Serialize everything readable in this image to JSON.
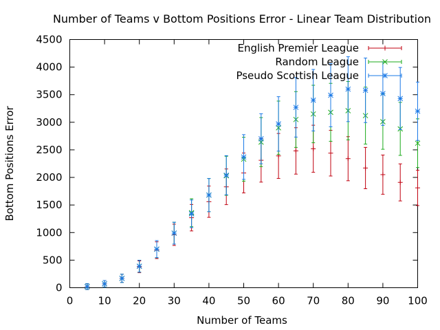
{
  "chart_data": {
    "type": "scatter",
    "title": "Number of Teams v Bottom Positions Error - Linear Team Distribution",
    "xlabel": "Number of Teams",
    "ylabel": "Bottom Positions Error",
    "xlim": [
      0,
      100
    ],
    "ylim": [
      0,
      4500
    ],
    "xticks": [
      0,
      10,
      20,
      30,
      40,
      50,
      60,
      70,
      80,
      90,
      100
    ],
    "yticks": [
      0,
      500,
      1000,
      1500,
      2000,
      2500,
      3000,
      3500,
      4000,
      4500
    ],
    "grid": false,
    "error_bars": true,
    "legend_position": "top-right",
    "x": [
      5,
      10,
      15,
      20,
      25,
      30,
      35,
      40,
      45,
      50,
      55,
      60,
      65,
      70,
      75,
      80,
      85,
      90,
      95,
      100
    ],
    "series": [
      {
        "name": "English Premier League",
        "color": "#c0000f",
        "marker": "plus",
        "values": [
          20,
          70,
          170,
          380,
          680,
          960,
          1270,
          1560,
          1830,
          2080,
          2310,
          2390,
          2480,
          2520,
          2440,
          2340,
          2170,
          2050,
          1910,
          1810
        ]
      },
      {
        "name": "Random League",
        "color": "#1aaa1a",
        "marker": "cross",
        "values": [
          20,
          70,
          170,
          390,
          700,
          990,
          1360,
          1680,
          2030,
          2330,
          2640,
          2900,
          3050,
          3150,
          3180,
          3210,
          3120,
          3010,
          2880,
          2620
        ]
      },
      {
        "name": "Pseudo Scottish League",
        "color": "#1a78e6",
        "marker": "star",
        "values": [
          20,
          70,
          170,
          390,
          700,
          990,
          1340,
          1680,
          2040,
          2370,
          2700,
          2970,
          3270,
          3400,
          3490,
          3600,
          3580,
          3520,
          3430,
          3200
        ]
      }
    ]
  }
}
